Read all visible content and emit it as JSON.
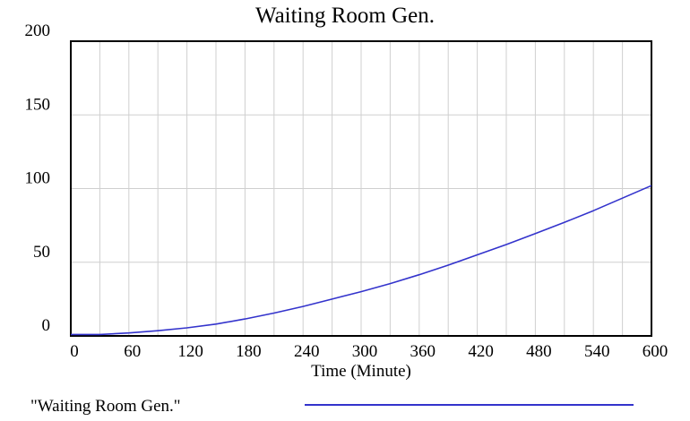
{
  "chart_data": {
    "type": "line",
    "title": "Waiting Room Gen.",
    "xlabel": "Time (Minute)",
    "ylabel": "",
    "xlim": [
      0,
      600
    ],
    "ylim": [
      0,
      200
    ],
    "x_ticks": [
      0,
      60,
      120,
      180,
      240,
      300,
      360,
      420,
      480,
      540,
      600
    ],
    "y_ticks": [
      0,
      50,
      100,
      150,
      200
    ],
    "grid": true,
    "legend_position": "bottom",
    "series": [
      {
        "name": "\"Waiting Room Gen.\"",
        "color": "#3333cc",
        "x": [
          0,
          30,
          60,
          90,
          120,
          150,
          180,
          210,
          240,
          270,
          300,
          330,
          360,
          390,
          420,
          450,
          480,
          510,
          540,
          570,
          600
        ],
        "y": [
          1,
          1,
          2,
          3.5,
          5.5,
          8,
          11.5,
          15.5,
          20,
          25,
          30,
          35.5,
          41.5,
          48,
          55,
          62,
          69.5,
          77,
          85,
          93.5,
          102
        ]
      }
    ]
  },
  "colors": {
    "grid": "#cfcfcf",
    "axis": "#000000",
    "series": "#3333cc"
  }
}
